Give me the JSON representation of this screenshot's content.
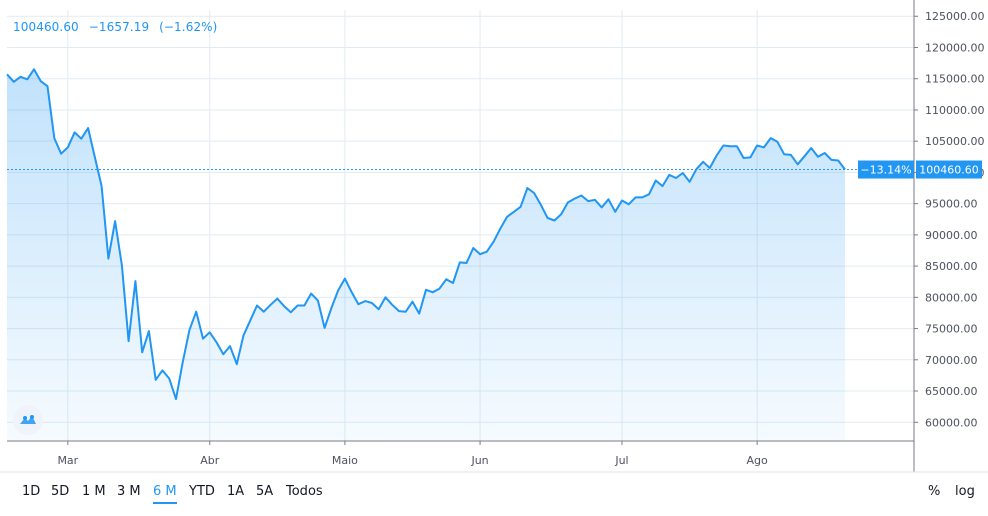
{
  "legend": {
    "last": "100460.60",
    "change": "−1657.19",
    "percent": "(−1.62%)"
  },
  "price_tags": {
    "percent": "−13.14%",
    "price": "100460.60"
  },
  "colors": {
    "line": "#2196f3",
    "grid": "#e1ecf2",
    "text": "#4c525e",
    "axis": "#787b86"
  },
  "toolbar": {
    "ranges": [
      "1D",
      "5D",
      "1 M",
      "3 M",
      "6 M",
      "YTD",
      "1A",
      "5A",
      "Todos"
    ],
    "active": "6 M",
    "scale_percent": "%",
    "scale_log": "log"
  },
  "logo_icon": "tradingview-logo-icon",
  "chart_data": {
    "type": "area",
    "title": "",
    "xlabel": "",
    "ylabel": "",
    "ylim": [
      57000,
      126000
    ],
    "y_ticks": [
      60000,
      65000,
      70000,
      75000,
      80000,
      85000,
      90000,
      95000,
      100000,
      105000,
      110000,
      115000,
      120000,
      125000
    ],
    "y_tick_labels": [
      "60000.00",
      "65000.00",
      "70000.00",
      "75000.00",
      "80000.00",
      "85000.00",
      "90000.00",
      "95000.00",
      "100000.00",
      "105000.00",
      "110000.00",
      "115000.00",
      "120000.00",
      "125000.00"
    ],
    "x_tick_labels": [
      "Mar",
      "Abr",
      "Maio",
      "Jun",
      "Jul",
      "Ago"
    ],
    "x_tick_index": [
      9,
      30,
      50,
      70,
      91,
      111
    ],
    "grid": true,
    "series": [
      {
        "values": [
          115700,
          114500,
          115300,
          114900,
          116500,
          114600,
          113800,
          105500,
          103000,
          104000,
          106400,
          105400,
          107100,
          102400,
          97800,
          86200,
          92200,
          85100,
          73000,
          82600,
          71200,
          74600,
          66800,
          68300,
          67000,
          63700,
          69600,
          74800,
          77700,
          73400,
          74400,
          72800,
          70900,
          72200,
          69300,
          73900,
          76300,
          78700,
          77700,
          78800,
          79800,
          78600,
          77600,
          78700,
          78700,
          80600,
          79500,
          75100,
          78300,
          81100,
          83000,
          80800,
          78900,
          79400,
          79100,
          78100,
          80000,
          78800,
          77800,
          77700,
          79300,
          77400,
          81200,
          80800,
          81400,
          82900,
          82300,
          85600,
          85500,
          87900,
          86900,
          87300,
          88900,
          91000,
          92900,
          93700,
          94500,
          97500,
          96700,
          94800,
          92700,
          92300,
          93300,
          95200,
          95800,
          96300,
          95400,
          95600,
          94400,
          95700,
          93700,
          95500,
          94900,
          96000,
          96000,
          96500,
          98700,
          97800,
          99600,
          99100,
          99900,
          98500,
          100500,
          101700,
          100700,
          102700,
          104300,
          104200,
          104200,
          102300,
          102400,
          104300,
          104000,
          105500,
          104900,
          102900,
          102800,
          101300,
          102600,
          103900,
          102500,
          103100,
          102000,
          101900,
          100460
        ]
      }
    ],
    "last_value": 100460.6,
    "change": -1657.19,
    "change_percent": -1.62,
    "percent_from_start": -13.14,
    "y_axis_position": "right",
    "range_selected": "6 M"
  }
}
